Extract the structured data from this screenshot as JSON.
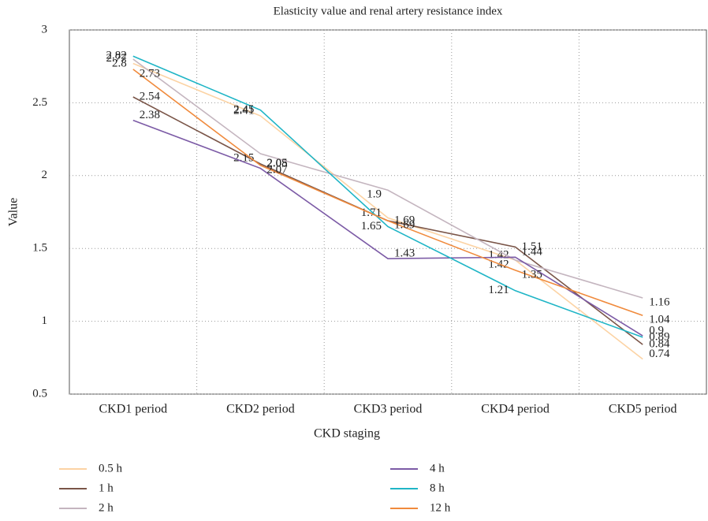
{
  "chart_data": {
    "type": "line",
    "title": "Elasticity value and renal artery resistance index",
    "x_label": "CKD staging",
    "y_label": "Value",
    "categories": [
      "CKD1 period",
      "CKD2 period",
      "CKD3 period",
      "CKD4 period",
      "CKD5 period"
    ],
    "series": [
      {
        "name": "0.5 h",
        "color": "#fcd3a4",
        "values": [
          2.77,
          2.41,
          1.71,
          1.42,
          0.74
        ]
      },
      {
        "name": "1 h",
        "color": "#7a5548",
        "values": [
          2.54,
          2.08,
          1.69,
          1.51,
          0.84
        ]
      },
      {
        "name": "2 h",
        "color": "#c4b5bf",
        "values": [
          2.8,
          2.15,
          1.9,
          1.42,
          1.16
        ]
      },
      {
        "name": "4 h",
        "color": "#7c5ba6",
        "values": [
          2.38,
          2.05,
          1.43,
          1.44,
          0.9
        ]
      },
      {
        "name": "8 h",
        "color": "#1fb5c6",
        "values": [
          2.82,
          2.45,
          1.65,
          1.21,
          0.89
        ]
      },
      {
        "name": "12 h",
        "color": "#f08a3c",
        "values": [
          2.73,
          2.07,
          1.69,
          1.35,
          1.04
        ]
      }
    ],
    "ylim": [
      0.5,
      3
    ],
    "yticks": [
      0.5,
      1,
      1.5,
      2,
      2.5,
      3
    ],
    "grid": true
  }
}
